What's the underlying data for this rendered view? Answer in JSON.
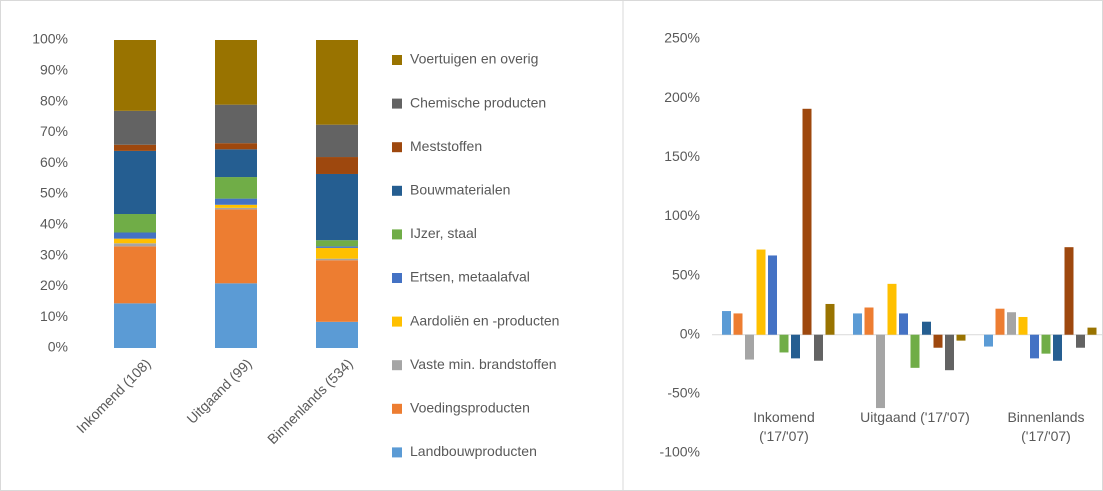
{
  "chart_data": [
    {
      "type": "stacked_bar",
      "categories": [
        "Inkomend (108)",
        "Uitgaand (99)",
        "Binnenlands (534)"
      ],
      "series": [
        {
          "name": "Landbouwproducten",
          "color": "#5b9bd5",
          "values": [
            14.5,
            21,
            8.5
          ]
        },
        {
          "name": "Voedingsproducten",
          "color": "#ed7d31",
          "values": [
            18.5,
            24,
            20
          ]
        },
        {
          "name": "Vaste min. brandstoffen",
          "color": "#a5a5a5",
          "values": [
            1,
            0.5,
            0.5
          ]
        },
        {
          "name": "Aardoliën en -producten",
          "color": "#ffc000",
          "values": [
            1.5,
            1,
            3.5
          ]
        },
        {
          "name": "Ertsen, metaalafval",
          "color": "#4472c4",
          "values": [
            2,
            2,
            0.5
          ]
        },
        {
          "name": "IJzer, staal",
          "color": "#70ad47",
          "values": [
            6,
            7,
            2
          ]
        },
        {
          "name": "Bouwmaterialen",
          "color": "#255e91",
          "values": [
            20.5,
            9,
            21.5
          ]
        },
        {
          "name": "Meststoffen",
          "color": "#9e480e",
          "values": [
            2,
            2,
            5.5
          ]
        },
        {
          "name": "Chemische producten",
          "color": "#636363",
          "values": [
            11,
            12.5,
            10.5
          ]
        },
        {
          "name": "Voertuigen en overig",
          "color": "#997300",
          "values": [
            23,
            21,
            27.5
          ]
        }
      ],
      "ylim": [
        0,
        100
      ],
      "yticks": [
        {
          "value": 0,
          "label": "0%"
        },
        {
          "value": 10,
          "label": "10%"
        },
        {
          "value": 20,
          "label": "20%"
        },
        {
          "value": 30,
          "label": "30%"
        },
        {
          "value": 40,
          "label": "40%"
        },
        {
          "value": 50,
          "label": "50%"
        },
        {
          "value": 60,
          "label": "60%"
        },
        {
          "value": 70,
          "label": "70%"
        },
        {
          "value": 80,
          "label": "80%"
        },
        {
          "value": 90,
          "label": "90%"
        },
        {
          "value": 100,
          "label": "100%"
        }
      ],
      "grid": false,
      "legend": "right"
    },
    {
      "type": "grouped_bar",
      "categories": [
        "Inkomend ('17/'07)",
        "Uitgaand ('17/'07)",
        "Binnenlands ('17/'07)"
      ],
      "series": [
        {
          "color": "#5b9bd5",
          "values": [
            20,
            18,
            -10
          ]
        },
        {
          "color": "#ed7d31",
          "values": [
            18,
            23,
            22
          ]
        },
        {
          "color": "#a5a5a5",
          "values": [
            -21,
            -62,
            19
          ]
        },
        {
          "color": "#ffc000",
          "values": [
            72,
            43,
            15
          ]
        },
        {
          "color": "#4472c4",
          "values": [
            67,
            18,
            -20
          ]
        },
        {
          "color": "#70ad47",
          "values": [
            -15,
            -28,
            -16
          ]
        },
        {
          "color": "#255e91",
          "values": [
            -20,
            11,
            -22
          ]
        },
        {
          "color": "#9e480e",
          "values": [
            191,
            -11,
            74
          ]
        },
        {
          "color": "#636363",
          "values": [
            -22,
            -30,
            -11
          ]
        },
        {
          "color": "#997300",
          "values": [
            26,
            -5,
            6
          ]
        }
      ],
      "ylim": [
        -100,
        250
      ],
      "yticks": [
        {
          "value": -100,
          "label": "-100%"
        },
        {
          "value": -50,
          "label": "-50%"
        },
        {
          "value": 0,
          "label": "0%"
        },
        {
          "value": 50,
          "label": "50%"
        },
        {
          "value": 100,
          "label": "100%"
        },
        {
          "value": 150,
          "label": "150%"
        },
        {
          "value": 200,
          "label": "200%"
        },
        {
          "value": 250,
          "label": "250%"
        }
      ],
      "grid": false
    }
  ]
}
